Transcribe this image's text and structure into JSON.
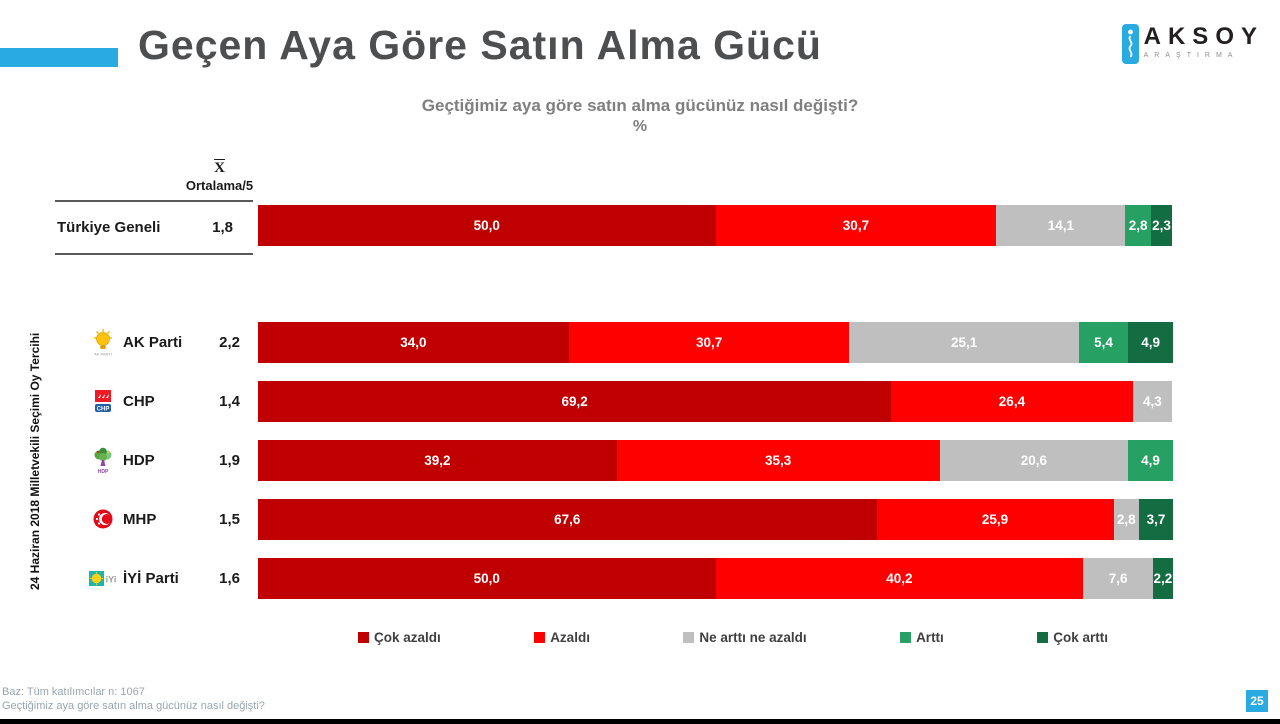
{
  "page": {
    "title": "Geçen Aya Göre Satın Alma Gücü",
    "accent_color": "#29ABE2"
  },
  "brand": {
    "name": "AKSOY",
    "subtitle": "ARAŞTIRMA"
  },
  "subtitle": {
    "question": "Geçtiğimiz aya göre satın alma gücünüz nasıl değişti?",
    "unit": "%"
  },
  "mean_header": {
    "symbol": "X",
    "label": "Ortalama/5"
  },
  "group_label": "24 Haziran 2018 Milletvekili Seçimi Oy Tercihi",
  "chart_data": {
    "type": "bar",
    "variant": "horizontal-stacked",
    "unit": "%",
    "title": "Geçen Aya Göre Satın Alma Gücü",
    "question": "Geçtiğimiz aya göre satın alma gücünüz nasıl değişti?",
    "legend_position": "bottom",
    "series": [
      {
        "name": "Çok azaldı",
        "color": "#C00000"
      },
      {
        "name": "Azaldı",
        "color": "#FF0000"
      },
      {
        "name": "Ne arttı ne azaldı",
        "color": "#BFBFBF"
      },
      {
        "name": "Arttı",
        "color": "#27A163"
      },
      {
        "name": "Çok arttı",
        "color": "#146C43"
      }
    ],
    "rows": [
      {
        "label": "Türkiye Geneli",
        "mean": "1,8",
        "logo": null,
        "values": [
          50.0,
          30.7,
          14.1,
          2.8,
          2.3
        ],
        "value_labels": [
          "50,0",
          "30,7",
          "14,1",
          "2,8",
          "2,3"
        ]
      },
      {
        "label": "AK Parti",
        "mean": "2,2",
        "logo": "akp-logo",
        "values": [
          34.0,
          30.7,
          25.1,
          5.4,
          4.9
        ],
        "value_labels": [
          "34,0",
          "30,7",
          "25,1",
          "5,4",
          "4,9"
        ]
      },
      {
        "label": "CHP",
        "mean": "1,4",
        "logo": "chp-logo",
        "values": [
          69.2,
          26.4,
          4.3,
          0,
          0
        ],
        "value_labels": [
          "69,2",
          "26,4",
          "4,3",
          "",
          ""
        ]
      },
      {
        "label": "HDP",
        "mean": "1,9",
        "logo": "hdp-logo",
        "values": [
          39.2,
          35.3,
          20.6,
          4.9,
          0
        ],
        "value_labels": [
          "39,2",
          "35,3",
          "20,6",
          "4,9",
          ""
        ]
      },
      {
        "label": "MHP",
        "mean": "1,5",
        "logo": "mhp-logo",
        "values": [
          67.6,
          25.9,
          2.8,
          0,
          3.7
        ],
        "value_labels": [
          "67,6",
          "25,9",
          "2,8",
          "",
          "3,7"
        ]
      },
      {
        "label": "İYİ Parti",
        "mean": "1,6",
        "logo": "iyi-logo",
        "values": [
          50.0,
          40.2,
          7.6,
          0,
          2.2
        ],
        "value_labels": [
          "50,0",
          "40,2",
          "7,6",
          "",
          "2,2"
        ]
      }
    ]
  },
  "footer": {
    "base": "Baz: Tüm katılımcılar n: 1067",
    "question": "Geçtiğimiz aya göre satın alma gücünüz nasıl değişti?",
    "page_number": "25"
  }
}
